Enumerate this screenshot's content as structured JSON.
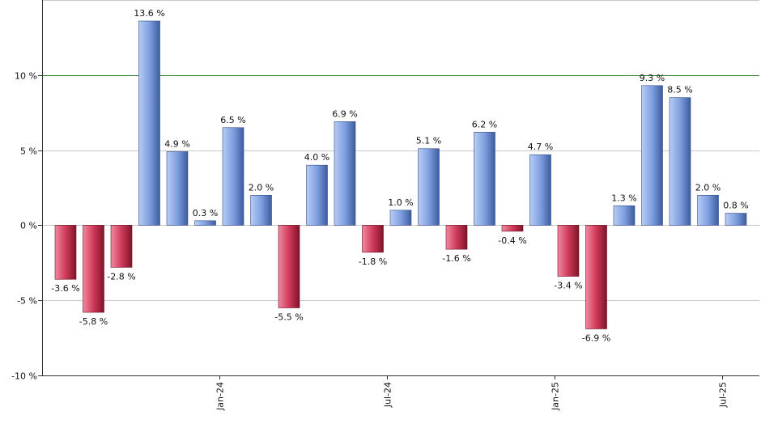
{
  "chart_data": {
    "type": "bar",
    "title": "",
    "xlabel": "",
    "ylabel": "",
    "ylim": [
      -10,
      15
    ],
    "y_ticks": [
      {
        "value": 10,
        "label": "10 %"
      },
      {
        "value": 5,
        "label": "5 %"
      },
      {
        "value": 0,
        "label": "0 %"
      },
      {
        "value": -5,
        "label": "-5 %"
      },
      {
        "value": -10,
        "label": "-10 %"
      }
    ],
    "x_ticks": [
      {
        "index": 5.5,
        "label": "Jan-24"
      },
      {
        "index": 11.5,
        "label": "Jul-24"
      },
      {
        "index": 17.5,
        "label": "Jan-25"
      },
      {
        "index": 23.5,
        "label": "Jul-25"
      }
    ],
    "values": [
      -3.6,
      -5.8,
      -2.8,
      13.6,
      4.9,
      0.3,
      6.5,
      2.0,
      -5.5,
      4.0,
      6.9,
      -1.8,
      1.0,
      5.1,
      -1.6,
      6.2,
      -0.4,
      4.7,
      -3.4,
      -6.9,
      1.3,
      9.3,
      8.5,
      2.0,
      0.8
    ],
    "labels": [
      "-3.6 %",
      "-5.8 %",
      "-2.8 %",
      "13.6 %",
      "4.9 %",
      "0.3 %",
      "6.5 %",
      "2.0 %",
      "-5.5 %",
      "4.0 %",
      "6.9 %",
      "-1.8 %",
      "1.0 %",
      "5.1 %",
      "-1.6 %",
      "6.2 %",
      "-0.4 %",
      "4.7 %",
      "-3.4 %",
      "-6.9 %",
      "1.3 %",
      "9.3 %",
      "8.5 %",
      "2.0 %",
      "0.8 %"
    ],
    "reference_line": {
      "value": 10,
      "color": "#2e7d32"
    },
    "grid": true,
    "colors": {
      "positive": "#7f9fe0",
      "negative": "#c4304f",
      "axis": "#333333",
      "grid": "#c8c8c8"
    }
  }
}
